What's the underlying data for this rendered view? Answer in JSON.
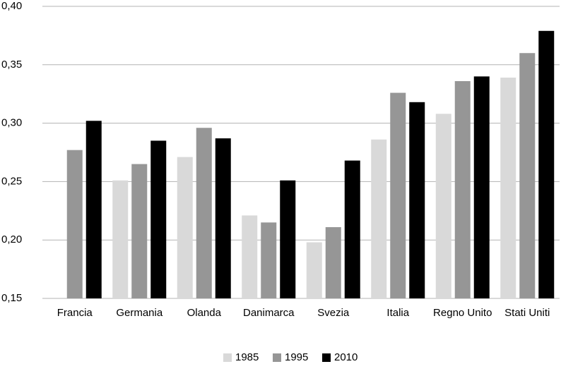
{
  "chart_data": {
    "type": "bar",
    "categories": [
      "Francia",
      "Germania",
      "Olanda",
      "Danimarca",
      "Svezia",
      "Italia",
      "Regno Unito",
      "Stati Uniti"
    ],
    "series": [
      {
        "name": "1985",
        "color": "#d9d9d9",
        "values": [
          null,
          0.251,
          0.271,
          0.221,
          0.198,
          0.286,
          0.308,
          0.339
        ]
      },
      {
        "name": "1995",
        "color": "#969696",
        "values": [
          0.277,
          0.265,
          0.296,
          0.215,
          0.211,
          0.326,
          0.336,
          0.36
        ]
      },
      {
        "name": "2010",
        "color": "#000000",
        "values": [
          0.302,
          0.285,
          0.287,
          0.251,
          0.268,
          0.318,
          0.34,
          0.379
        ]
      }
    ],
    "ylim": [
      0.15,
      0.4
    ],
    "yticks": [
      {
        "value": 0.15,
        "label": "0,15"
      },
      {
        "value": 0.2,
        "label": "0,20"
      },
      {
        "value": 0.25,
        "label": "0,25"
      },
      {
        "value": 0.3,
        "label": "0,30"
      },
      {
        "value": 0.35,
        "label": "0,35"
      },
      {
        "value": 0.4,
        "label": "0,40"
      }
    ],
    "grid": true,
    "legend": "bottom"
  }
}
